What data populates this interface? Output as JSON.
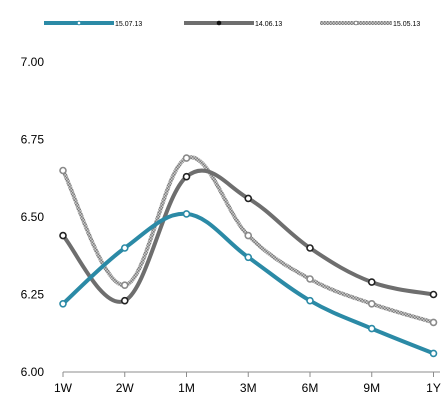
{
  "chart_data": {
    "type": "line",
    "categories": [
      "1W",
      "2W",
      "1M",
      "3M",
      "6M",
      "9M",
      "1Y"
    ],
    "ylim": [
      6.0,
      7.0
    ],
    "yticks": [
      "6.00",
      "6.25",
      "6.50",
      "6.75",
      "7.00"
    ],
    "grid": false,
    "legend_position": "top",
    "series": [
      {
        "name": "15.07.13",
        "color": "#2b8aa6",
        "style": "solid",
        "values": [
          6.22,
          6.4,
          6.51,
          6.37,
          6.23,
          6.14,
          6.06
        ]
      },
      {
        "name": "14.06.13",
        "color": "#6e6e6e",
        "style": "solid",
        "values": [
          6.44,
          6.23,
          6.63,
          6.56,
          6.4,
          6.29,
          6.25
        ]
      },
      {
        "name": "15.05.13",
        "color": "#a8a8a8",
        "style": "textured",
        "values": [
          6.65,
          6.28,
          6.69,
          6.44,
          6.3,
          6.22,
          6.16
        ]
      }
    ]
  }
}
